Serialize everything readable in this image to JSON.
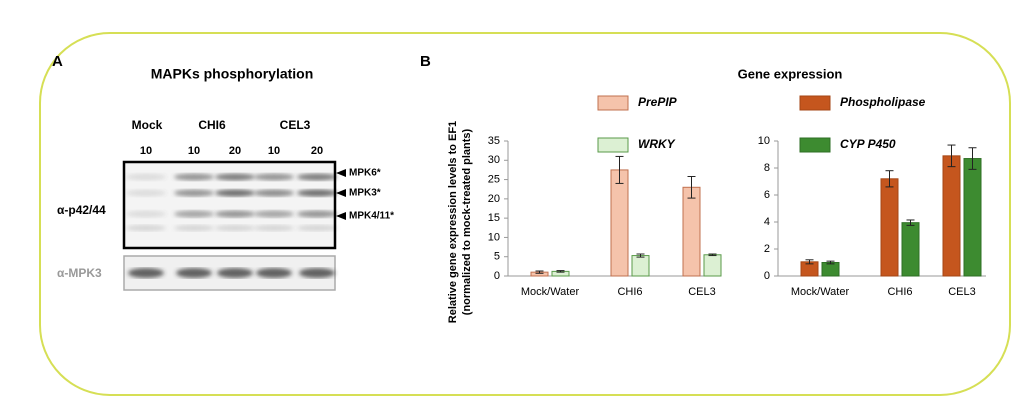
{
  "panel_a": {
    "letter": "A",
    "title": "MAPKs phosphorylation",
    "groups": [
      "Mock",
      "CHI6",
      "CEL3"
    ],
    "doses": [
      "10",
      "10",
      "20",
      "10",
      "20"
    ],
    "band_labels": [
      "MPK6*",
      "MPK3*",
      "MPK4/11*"
    ],
    "antibodies": [
      "α-p42/44",
      "α-MPK3"
    ]
  },
  "panel_b": {
    "letter": "B",
    "title": "Gene expression",
    "ylabel": [
      "Relative gene expression levels to EF1",
      "(normalized to mock-treated plants)"
    ]
  },
  "chart_data": [
    {
      "type": "bar",
      "categories": [
        "Mock/Water",
        "CHI6",
        "CEL3"
      ],
      "series": [
        {
          "name": "PrePIP",
          "color": "#f5c3ab",
          "edge": "#c0704f",
          "values": [
            1,
            27.5,
            23
          ],
          "errors": [
            0.3,
            3.5,
            2.8
          ]
        },
        {
          "name": "WRKY",
          "color": "#dcf0d3",
          "edge": "#5a9a4a",
          "values": [
            1.2,
            5.3,
            5.5
          ],
          "errors": [
            0.2,
            0.4,
            0.2
          ]
        }
      ],
      "ylim": [
        0,
        35
      ],
      "yticks": [
        0,
        5,
        10,
        15,
        20,
        25,
        30,
        35
      ]
    },
    {
      "type": "bar",
      "categories": [
        "Mock/Water",
        "CHI6",
        "CEL3"
      ],
      "series": [
        {
          "name": "Phospholipase",
          "color": "#c5561e",
          "edge": "#a54614",
          "values": [
            1.05,
            7.2,
            8.9
          ],
          "errors": [
            0.15,
            0.6,
            0.8
          ]
        },
        {
          "name": "CYP P450",
          "color": "#3d8b30",
          "edge": "#2e6f24",
          "values": [
            1.0,
            3.95,
            8.7
          ],
          "errors": [
            0.1,
            0.2,
            0.8
          ]
        }
      ],
      "ylim": [
        0,
        10
      ],
      "yticks": [
        0,
        2,
        4,
        6,
        8,
        10
      ]
    }
  ]
}
